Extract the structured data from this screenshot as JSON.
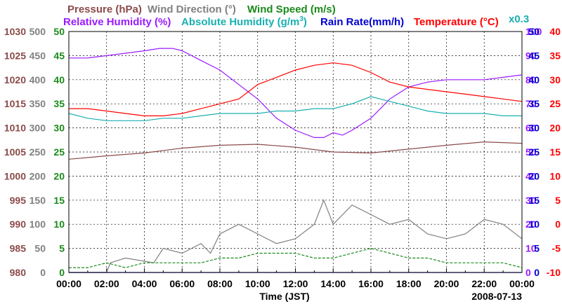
{
  "chart_data": {
    "type": "line",
    "date": "2008-07-13",
    "xlabel": "Time (JST)",
    "x_ticks": [
      "00:00",
      "02:00",
      "04:00",
      "06:00",
      "08:00",
      "10:00",
      "12:00",
      "14:00",
      "16:00",
      "18:00",
      "20:00",
      "22:00",
      "00:00"
    ],
    "grid": true,
    "title_row1": [
      {
        "text": "Pressure (hPa)",
        "color": "#8b4a4a"
      },
      {
        "text": "Wind Direction (°)",
        "color": "#808080"
      },
      {
        "text": "Wind Speed (m/s)",
        "color": "#1a8a1a"
      }
    ],
    "title_row2": [
      {
        "text": "Relative Humidity (%)",
        "color": "#9a1aff"
      },
      {
        "text": "Absolute Humidity (g/m",
        "sup": "3",
        "close": ")",
        "color": "#1ab0b0"
      },
      {
        "text": "Rain Rate(mm/h)",
        "color": "#0000d0"
      },
      {
        "text": "Temperature (°C)",
        "color": "#ff0000"
      }
    ],
    "abs_humidity_scale_note": "x0.3",
    "axes": {
      "pressure": {
        "ticks": [
          "1030",
          "1025",
          "1020",
          "1015",
          "1010",
          "1005",
          "1000",
          "995",
          "990",
          "985",
          "980"
        ],
        "range": [
          980,
          1030
        ],
        "color": "#8b4a4a"
      },
      "wind_direction": {
        "ticks": [
          "500",
          "450",
          "400",
          "350",
          "300",
          "250",
          "200",
          "150",
          "100",
          "50",
          "0"
        ],
        "range": [
          0,
          500
        ],
        "color": "#808080"
      },
      "wind_speed": {
        "ticks": [
          "50",
          "45",
          "40",
          "35",
          "30",
          "25",
          "20",
          "15",
          "10",
          "5",
          "0"
        ],
        "range": [
          0,
          50
        ],
        "color": "#1a8a1a"
      },
      "humidity": {
        "ticks": [
          "100",
          "90",
          "80",
          "70",
          "60",
          "50",
          "40",
          "30",
          "20",
          "10",
          "0"
        ],
        "range": [
          0,
          100
        ],
        "color": "#9a1aff"
      },
      "rain_rate": {
        "ticks": [
          "50",
          "45",
          "40",
          "35",
          "30",
          "25",
          "20",
          "15",
          "10",
          "5",
          "0"
        ],
        "range": [
          0,
          50
        ],
        "color": "#0000d0"
      },
      "temperature": {
        "ticks": [
          "40",
          "35",
          "30",
          "25",
          "20",
          "15",
          "10",
          "5",
          "0",
          "-5",
          "-10"
        ],
        "range": [
          -10,
          40
        ],
        "color": "#ff0000"
      }
    },
    "series": [
      {
        "name": "Pressure (hPa)",
        "color": "#8b4a4a",
        "axis": "pressure",
        "x": [
          0,
          2,
          4,
          6,
          8,
          10,
          12,
          14,
          16,
          18,
          20,
          22,
          24
        ],
        "y": [
          1003.5,
          1004.2,
          1004.8,
          1005.8,
          1006.4,
          1006.6,
          1006.0,
          1005.0,
          1004.8,
          1005.6,
          1006.4,
          1007.1,
          1006.8
        ]
      },
      {
        "name": "Relative Humidity (%)",
        "color": "#9a1aff",
        "axis": "humidity",
        "x": [
          0,
          1,
          2,
          3,
          4,
          4.8,
          5.5,
          6,
          7,
          8,
          9,
          10,
          11,
          12,
          13,
          13.5,
          14,
          14.5,
          15,
          16,
          17,
          18,
          19,
          20,
          21,
          22,
          23,
          24
        ],
        "y": [
          89,
          89,
          90,
          91,
          92,
          93,
          93,
          92,
          88,
          84,
          78,
          72,
          64,
          59,
          56,
          56,
          58,
          57,
          59,
          64,
          72,
          77,
          79,
          80,
          80,
          80,
          81,
          82
        ]
      },
      {
        "name": "Absolute Humidity (g/m3) x0.3",
        "color": "#1ab0b0",
        "axis": "humidity",
        "x": [
          0,
          1,
          2,
          3,
          4,
          5,
          6,
          7,
          8,
          9,
          10,
          11,
          12,
          13,
          14,
          15,
          16,
          17,
          18,
          19,
          20,
          21,
          22,
          23,
          24
        ],
        "y": [
          66,
          64,
          63,
          63,
          63,
          64,
          64,
          65,
          66,
          66,
          66,
          67,
          67,
          68,
          68,
          70,
          73,
          71,
          69,
          67,
          66,
          66,
          66,
          65,
          65
        ]
      },
      {
        "name": "Temperature (°C)",
        "color": "#ff0000",
        "axis": "temperature",
        "x": [
          0,
          1,
          2,
          3,
          4,
          5,
          6,
          7,
          8,
          9,
          10,
          11,
          12,
          13,
          14,
          15,
          16,
          17,
          18,
          19,
          20,
          21,
          22,
          23,
          24
        ],
        "y": [
          24,
          24,
          23.5,
          23,
          22.5,
          22.5,
          23,
          24,
          25,
          26,
          29,
          30.5,
          32,
          33,
          33.5,
          33,
          31.5,
          29.5,
          28.5,
          28,
          27.5,
          27,
          26.5,
          26,
          25.5
        ]
      },
      {
        "name": "Wind Direction (°)",
        "color": "#808080",
        "axis": "wind_direction",
        "x": [
          0,
          2,
          2.2,
          3,
          4.5,
          5,
          6,
          7,
          7.5,
          8,
          9,
          10,
          11,
          12,
          13,
          13.5,
          14,
          15,
          16,
          17,
          18,
          19,
          20,
          21,
          22,
          23,
          24
        ],
        "y": [
          0,
          0,
          20,
          30,
          20,
          50,
          40,
          60,
          40,
          80,
          100,
          80,
          60,
          70,
          100,
          150,
          100,
          140,
          120,
          100,
          110,
          80,
          70,
          80,
          110,
          100,
          70
        ]
      },
      {
        "name": "Wind Speed (m/s)",
        "color": "#1a8a1a",
        "axis": "wind_speed",
        "x": [
          0,
          1,
          2,
          3,
          4,
          5,
          6,
          7,
          8,
          9,
          10,
          11,
          12,
          13,
          14,
          15,
          16,
          17,
          18,
          19,
          20,
          21,
          22,
          23,
          24
        ],
        "y": [
          1,
          1,
          2,
          1,
          2,
          2,
          2,
          2,
          3,
          3,
          4,
          4,
          4,
          3,
          3,
          4,
          5,
          4,
          3,
          3,
          2,
          2,
          2,
          2,
          1
        ]
      },
      {
        "name": "Rain Rate(mm/h)",
        "color": "#0000d0",
        "axis": "rain_rate",
        "x": [
          0,
          24
        ],
        "y": [
          0,
          0
        ]
      }
    ]
  }
}
